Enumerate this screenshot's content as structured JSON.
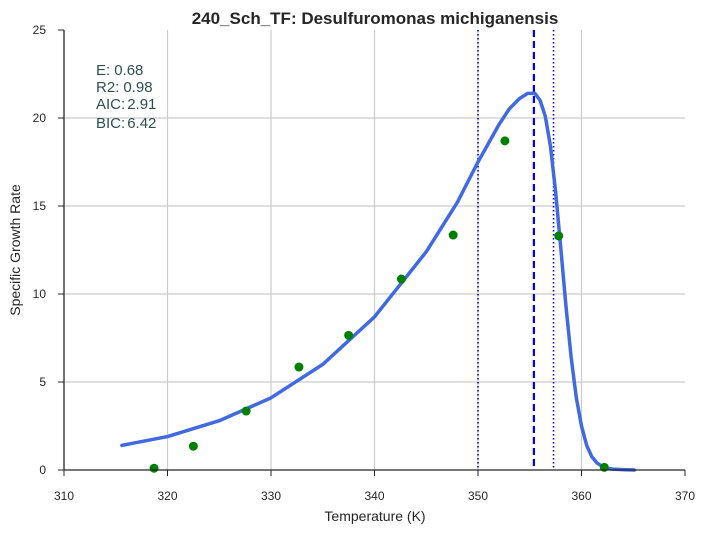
{
  "chart_data": {
    "type": "line",
    "title": "240_Sch_TF: Desulfuromonas michiganensis",
    "xlabel": "Temperature (K)",
    "ylabel": "Specific Growth Rate",
    "xlim": [
      310,
      370
    ],
    "ylim": [
      0,
      25
    ],
    "xticks": [
      "310",
      "320",
      "330",
      "340",
      "350",
      "360",
      "370"
    ],
    "yticks": [
      "0",
      "5",
      "10",
      "15",
      "20",
      "25"
    ],
    "grid": true,
    "annotations": [
      {
        "label": "E:",
        "value": "0.68"
      },
      {
        "label": "R2:",
        "value": "0.98"
      },
      {
        "label": "AIC:",
        "value": "2.91"
      },
      {
        "label": "BIC:",
        "value": "6.42"
      }
    ],
    "scatter": {
      "color": "#008000",
      "x": [
        318.7,
        322.5,
        327.6,
        332.7,
        337.5,
        342.6,
        347.6,
        352.6,
        357.8,
        362.2
      ],
      "y": [
        0.1,
        1.35,
        3.35,
        5.85,
        7.65,
        10.85,
        13.35,
        18.7,
        13.3,
        0.15
      ]
    },
    "fit": {
      "color": "#4169e1",
      "x": [
        315.6,
        320,
        325,
        330,
        335,
        340,
        345,
        348,
        350,
        352,
        353,
        354,
        354.8,
        355.5,
        356,
        356.5,
        357,
        357.5,
        358,
        358.5,
        359,
        359.5,
        360,
        360.5,
        361,
        361.5,
        362,
        362.5,
        363,
        364,
        365.1
      ],
      "y": [
        1.4,
        1.9,
        2.8,
        4.1,
        6.0,
        8.7,
        12.4,
        15.2,
        17.5,
        19.6,
        20.5,
        21.1,
        21.4,
        21.4,
        21.0,
        20.1,
        18.4,
        15.8,
        12.6,
        9.3,
        6.4,
        4.1,
        2.5,
        1.4,
        0.75,
        0.4,
        0.2,
        0.1,
        0.05,
        0.02,
        0.0
      ]
    },
    "vlines": [
      {
        "x": 355.4,
        "style": "dashed",
        "color": "#0000ff"
      },
      {
        "x": 350.0,
        "style": "dotted",
        "color": "#0000ff"
      },
      {
        "x": 357.3,
        "style": "dotted",
        "color": "#0000ff"
      }
    ]
  }
}
